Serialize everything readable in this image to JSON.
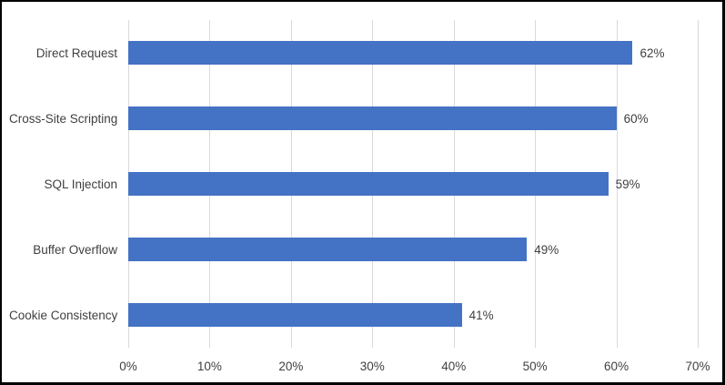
{
  "chart_data": {
    "type": "bar",
    "orientation": "horizontal",
    "title": "",
    "xlabel": "",
    "ylabel": "",
    "categories": [
      "Direct Request",
      "Cross-Site Scripting",
      "SQL Injection",
      "Buffer Overflow",
      "Cookie Consistency"
    ],
    "values": [
      62,
      60,
      59,
      49,
      41
    ],
    "data_labels": [
      "62%",
      "60%",
      "59%",
      "49%",
      "41%"
    ],
    "x_ticks": [
      {
        "value": 0,
        "label": "0%"
      },
      {
        "value": 10,
        "label": "10%"
      },
      {
        "value": 20,
        "label": "20%"
      },
      {
        "value": 30,
        "label": "30%"
      },
      {
        "value": 40,
        "label": "40%"
      },
      {
        "value": 50,
        "label": "50%"
      },
      {
        "value": 60,
        "label": "60%"
      },
      {
        "value": 70,
        "label": "70%"
      }
    ],
    "xlim": [
      0,
      70
    ],
    "grid": "vertical-gridlines-on",
    "legend_position": "none",
    "colors": {
      "bar": "#4472C4",
      "gridline": "#D9D9D9",
      "label_text": "#404040",
      "frame_border": "#000000",
      "background": "#FFFFFF"
    }
  }
}
